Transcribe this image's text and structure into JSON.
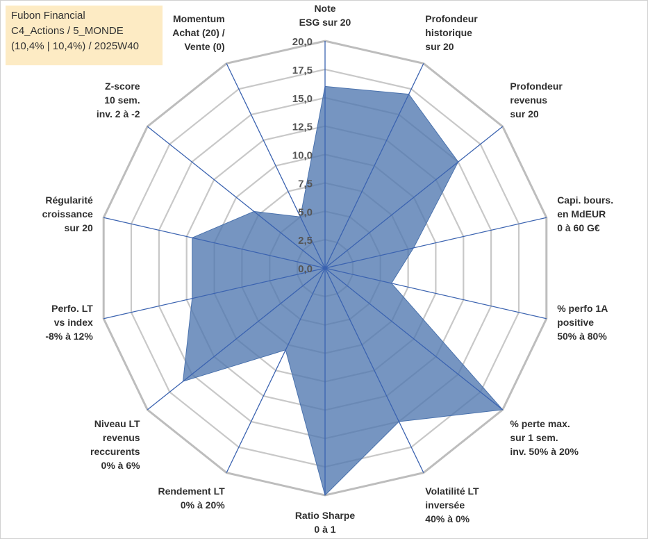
{
  "info": {
    "line1": "Fubon Financial",
    "line2": "C4_Actions / 5_MONDE",
    "line3": "(10,4% | 10,4%) / 2025W40"
  },
  "chart_data": {
    "type": "radar",
    "rmax": 20,
    "ticks": [
      "0,0",
      "2,5",
      "5,0",
      "7,5",
      "10,0",
      "12,5",
      "15,0",
      "17,5",
      "20,0"
    ],
    "grid": true,
    "series_color": "#4f77b0",
    "axes": [
      {
        "lines": [
          "Note",
          "ESG sur 20"
        ],
        "value": 16
      },
      {
        "lines": [
          "Profondeur",
          "historique",
          "sur 20"
        ],
        "value": 17
      },
      {
        "lines": [
          "Profondeur",
          "revenus",
          "sur 20"
        ],
        "value": 15
      },
      {
        "lines": [
          "Capi. bours.",
          "en MdEUR",
          "0 à 60 G€"
        ],
        "value": 8
      },
      {
        "lines": [
          "% perfo 1A",
          "positive",
          "50% à 80%"
        ],
        "value": 6
      },
      {
        "lines": [
          "% perte max.",
          "sur 1 sem.",
          "inv. 50% à 20%"
        ],
        "value": 20
      },
      {
        "lines": [
          "Volatilité LT",
          "inversée",
          "40% à 0%"
        ],
        "value": 15
      },
      {
        "lines": [
          "Ratio Sharpe",
          "0 à 1"
        ],
        "value": 20
      },
      {
        "lines": [
          "Rendement LT",
          "0% à 20%"
        ],
        "value": 8
      },
      {
        "lines": [
          "Niveau LT",
          "revenus",
          "reccurents",
          "0% à 6%"
        ],
        "value": 16
      },
      {
        "lines": [
          "Perfo. LT",
          "vs index",
          "-8% à 12%"
        ],
        "value": 12
      },
      {
        "lines": [
          "Régularité",
          "croissance",
          "sur 20"
        ],
        "value": 12
      },
      {
        "lines": [
          "Z-score",
          "10 sem.",
          "inv. 2 à -2"
        ],
        "value": 8
      },
      {
        "lines": [
          "Momentum",
          "Achat (20) /",
          "Vente (0)"
        ],
        "value": 5
      }
    ]
  }
}
